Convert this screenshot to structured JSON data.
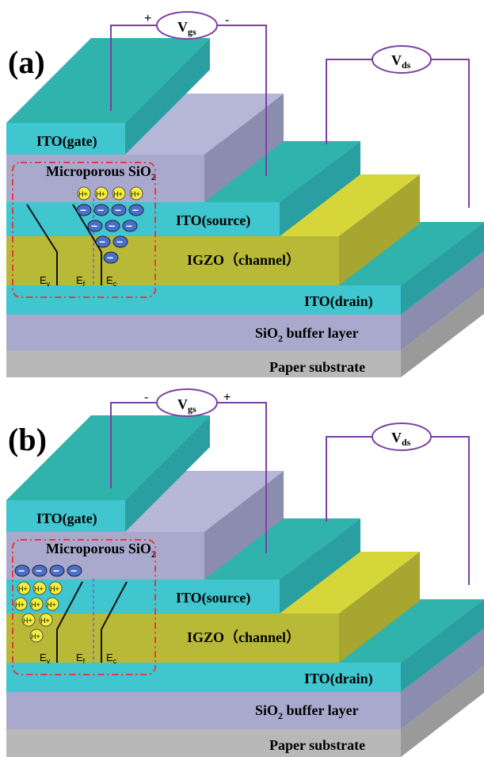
{
  "panels": [
    {
      "label": "(a)",
      "vgs": {
        "main": "V",
        "sub": "gs",
        "left_sign": "+",
        "right_sign": "-"
      },
      "vds": {
        "main": "V",
        "sub": "ds"
      },
      "layers": {
        "gate": "ITO(gate)",
        "dielectric_main": "Microporous SiO",
        "dielectric_sub": "2",
        "source": "ITO(source)",
        "channel": "IGZO（channel）",
        "drain": "ITO(drain)",
        "buffer_pre": "SiO",
        "buffer_sub": "2",
        "buffer_post": " buffer layer",
        "substrate": "Paper substrate"
      },
      "band": {
        "ev": "E",
        "ev_sub": "v",
        "ef": "E",
        "ef_sub": "f",
        "ec": "E",
        "ec_sub": "c"
      },
      "ion_label": "H+",
      "electron_label": "−"
    },
    {
      "label": "(b)",
      "vgs": {
        "main": "V",
        "sub": "gs",
        "left_sign": "-",
        "right_sign": "+"
      },
      "vds": {
        "main": "V",
        "sub": "ds"
      },
      "layers": {
        "gate": "ITO(gate)",
        "dielectric_main": "Microporous SiO",
        "dielectric_sub": "2",
        "source": "ITO(source)",
        "channel": "IGZO（channel）",
        "drain": "ITO(drain)",
        "buffer_pre": "SiO",
        "buffer_sub": "2",
        "buffer_post": " buffer layer",
        "substrate": "Paper substrate"
      },
      "band": {
        "ev": "E",
        "ev_sub": "v",
        "ef": "E",
        "ef_sub": "f",
        "ec": "E",
        "ec_sub": "c"
      },
      "ion_label": "H+",
      "electron_label": "−"
    }
  ],
  "colors": {
    "ito": "#3fc6cf",
    "ito_top": "#2fb3ac",
    "ito_side": "#2a9fa2",
    "sio2": "#a9a9cd",
    "sio2_side": "#8c8cae",
    "igzo": "#b9b938",
    "igzo_top": "#d6d63a",
    "paper": "#b8b8b8",
    "paper_side": "#9a9a9a",
    "wire": "#7b3fa6",
    "electron": "#4a6fc9",
    "ion": "#f4ef3a",
    "dash_box": "#e33b3b",
    "fermi": "#7b5fc9"
  }
}
